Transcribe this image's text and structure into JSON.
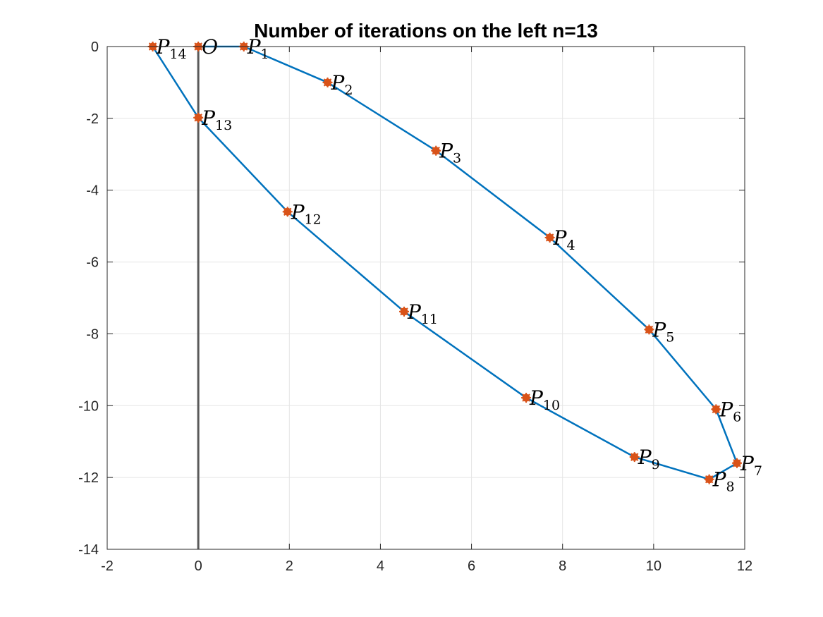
{
  "chart_data": {
    "type": "line",
    "title": "Number of iterations on the left n=13",
    "xlabel": "",
    "ylabel": "",
    "xlim": [
      -2,
      12
    ],
    "ylim": [
      -14,
      0
    ],
    "xticks": [
      -2,
      0,
      2,
      4,
      6,
      8,
      10,
      12
    ],
    "yticks": [
      0,
      -2,
      -4,
      -6,
      -8,
      -10,
      -12,
      -14
    ],
    "xtick_labels": [
      "-2",
      "0",
      "2",
      "4",
      "6",
      "8",
      "10",
      "12"
    ],
    "ytick_labels": [
      "0",
      "-2",
      "-4",
      "-6",
      "-8",
      "-10",
      "-12",
      "-14"
    ],
    "grid": true,
    "box": true,
    "vertical_line": {
      "x": 0,
      "color": "#5a5a5a"
    },
    "series": [
      {
        "line_color": "#0072bd",
        "marker_color": "#d95319",
        "points": [
          {
            "label": "O",
            "sub": "",
            "x": 0,
            "y": 0
          },
          {
            "label": "P",
            "sub": "1",
            "x": 1.0,
            "y": 0
          },
          {
            "label": "P",
            "sub": "2",
            "x": 2.84,
            "y": -1.0
          },
          {
            "label": "P",
            "sub": "3",
            "x": 5.22,
            "y": -2.9
          },
          {
            "label": "P",
            "sub": "4",
            "x": 7.72,
            "y": -5.32
          },
          {
            "label": "P",
            "sub": "5",
            "x": 9.9,
            "y": -7.88
          },
          {
            "label": "P",
            "sub": "6",
            "x": 11.37,
            "y": -10.1
          },
          {
            "label": "P",
            "sub": "7",
            "x": 11.83,
            "y": -11.6
          },
          {
            "label": "P",
            "sub": "8",
            "x": 11.22,
            "y": -12.05
          },
          {
            "label": "P",
            "sub": "9",
            "x": 9.58,
            "y": -11.43
          },
          {
            "label": "P",
            "sub": "10",
            "x": 7.2,
            "y": -9.78
          },
          {
            "label": "P",
            "sub": "11",
            "x": 4.52,
            "y": -7.38
          },
          {
            "label": "P",
            "sub": "12",
            "x": 1.96,
            "y": -4.6
          },
          {
            "label": "P",
            "sub": "13",
            "x": 0,
            "y": -1.98
          },
          {
            "label": "P",
            "sub": "14",
            "x": -1.0,
            "y": 0
          }
        ]
      }
    ]
  }
}
